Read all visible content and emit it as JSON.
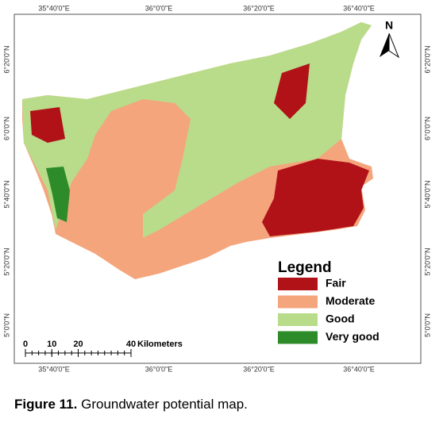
{
  "map": {
    "top_labels": [
      "35°40'0\"E",
      "36°0'0\"E",
      "36°20'0\"E",
      "36°40'0\"E"
    ],
    "bottom_labels": [
      "35°40'0\"E",
      "36°0'0\"E",
      "36°20'0\"E",
      "36°40'0\"E"
    ],
    "left_labels": [
      "6°20'0\"N",
      "6°0'0\"N",
      "5°40'0\"N",
      "5°20'0\"N",
      "5°0'0\"N"
    ],
    "right_labels": [
      "6°20'0\"N",
      "6°0'0\"N",
      "5°40'0\"N",
      "5°20'0\"N",
      "5°0'0\"N"
    ],
    "north": "N"
  },
  "legend": {
    "title": "Legend",
    "items": [
      {
        "label": "Fair",
        "color": "#b01218"
      },
      {
        "label": "Moderate",
        "color": "#f4a57c"
      },
      {
        "label": "Good",
        "color": "#b8dc8a"
      },
      {
        "label": "Very good",
        "color": "#2e8b2a"
      }
    ]
  },
  "scale_bar": {
    "ticks": [
      0,
      10,
      20,
      40
    ],
    "unit": "Kilometers"
  },
  "caption": {
    "label": "Figure 11.",
    "text": "Groundwater potential map."
  }
}
